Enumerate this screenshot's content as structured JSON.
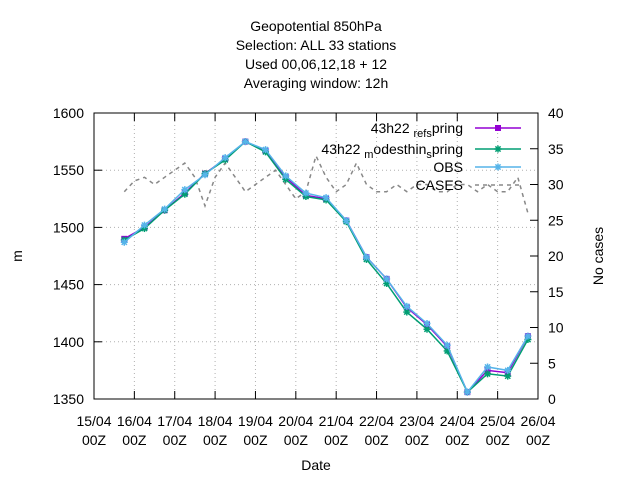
{
  "chart_data": {
    "type": "line",
    "title_lines": [
      "Geopotential 850hPa",
      "Selection: ALL     33 stations",
      "Used  00,06,12,18  + 12",
      "Averaging window: 12h"
    ],
    "xlabel": "Date",
    "ylabel": "m",
    "y2label": "No cases",
    "ylim": [
      1350,
      1600
    ],
    "y2lim": [
      0,
      40
    ],
    "yticks": [
      1350,
      1400,
      1450,
      1500,
      1550,
      1600
    ],
    "y2ticks": [
      0,
      5,
      10,
      15,
      20,
      25,
      30,
      35,
      40
    ],
    "xlim": [
      0,
      11
    ],
    "xticks": [
      {
        "x": 0,
        "label": [
          "15/04",
          "00Z"
        ]
      },
      {
        "x": 1,
        "label": [
          "16/04",
          "00Z"
        ]
      },
      {
        "x": 2,
        "label": [
          "17/04",
          "00Z"
        ]
      },
      {
        "x": 3,
        "label": [
          "18/04",
          "00Z"
        ]
      },
      {
        "x": 4,
        "label": [
          "19/04",
          "00Z"
        ]
      },
      {
        "x": 5,
        "label": [
          "20/04",
          "00Z"
        ]
      },
      {
        "x": 6,
        "label": [
          "21/04",
          "00Z"
        ]
      },
      {
        "x": 7,
        "label": [
          "22/04",
          "00Z"
        ]
      },
      {
        "x": 8,
        "label": [
          "23/04",
          "00Z"
        ]
      },
      {
        "x": 9,
        "label": [
          "24/04",
          "00Z"
        ]
      },
      {
        "x": 10,
        "label": [
          "25/04",
          "00Z"
        ]
      },
      {
        "x": 11,
        "label": [
          "26/04",
          "00Z"
        ]
      }
    ],
    "legend_position": "top-right",
    "x": [
      0.75,
      1.25,
      1.75,
      2.25,
      2.75,
      3.25,
      3.75,
      4.25,
      4.75,
      5.25,
      5.75,
      6.25,
      6.75,
      7.25,
      7.75,
      8.25,
      8.75,
      9.25,
      9.75,
      10.25,
      10.75
    ],
    "series": [
      {
        "name": "43h22_ref_spring",
        "legend_parts": [
          "43h22",
          "ref",
          "s",
          "pring"
        ],
        "color": "#9400d3",
        "marker": "square",
        "axis": "y1",
        "values": [
          1490,
          1500,
          1515,
          1530,
          1547,
          1560,
          1575,
          1567,
          1544,
          1528,
          1525,
          1506,
          1474,
          1455,
          1430,
          1415,
          1396,
          1356,
          1375,
          1373,
          1405
        ]
      },
      {
        "name": "43h22_modesthin_spring",
        "legend_parts": [
          "43h22",
          "m",
          "odesthin",
          "s",
          "pring"
        ],
        "color": "#009e73",
        "marker": "star",
        "axis": "y1",
        "values": [
          1489,
          1499,
          1515,
          1529,
          1547,
          1559,
          1575,
          1566,
          1542,
          1527,
          1524,
          1505,
          1472,
          1451,
          1426,
          1411,
          1392,
          1356,
          1372,
          1370,
          1402
        ]
      },
      {
        "name": "OBS",
        "color": "#56b4e9",
        "marker": "star",
        "axis": "y1",
        "values": [
          1487,
          1502,
          1516,
          1533,
          1546,
          1561,
          1575,
          1568,
          1545,
          1530,
          1526,
          1506,
          1474,
          1455,
          1431,
          1416,
          1397,
          1356,
          1378,
          1375,
          1405
        ]
      },
      {
        "name": "CASES",
        "color": "#888888",
        "marker": "none",
        "dashed": true,
        "axis": "y2",
        "x": [
          0.75,
          1.0,
          1.25,
          1.5,
          1.75,
          2.0,
          2.25,
          2.5,
          2.75,
          3.0,
          3.25,
          3.5,
          3.75,
          4.0,
          4.25,
          4.5,
          4.75,
          5.0,
          5.25,
          5.5,
          5.75,
          6.0,
          6.25,
          6.5,
          6.75,
          7.0,
          7.25,
          7.5,
          7.75,
          8.0,
          8.25,
          8.5,
          8.75,
          9.0,
          9.25,
          9.5,
          9.75,
          10.0,
          10.25,
          10.5,
          10.75
        ],
        "values": [
          29,
          30.5,
          31,
          30,
          31,
          32,
          33,
          31,
          27,
          31,
          33,
          31,
          29,
          30,
          31,
          32,
          30,
          28,
          29,
          34,
          31,
          29,
          30,
          33,
          30,
          29,
          29,
          30,
          29,
          30,
          30,
          29,
          29,
          30,
          30,
          29,
          30,
          29,
          29,
          31,
          26
        ]
      }
    ]
  }
}
